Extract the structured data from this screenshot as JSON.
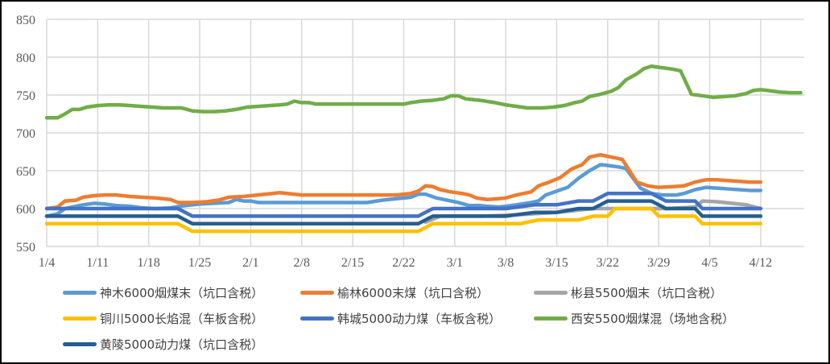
{
  "chart_data": {
    "type": "line",
    "title": "",
    "xlabel": "",
    "ylabel": "",
    "ylim": [
      550,
      850
    ],
    "yticks": [
      550,
      600,
      650,
      700,
      750,
      800,
      850
    ],
    "grid": true,
    "legend_position": "bottom",
    "x_tick_labels": [
      "1/4",
      "1/11",
      "1/18",
      "1/25",
      "2/1",
      "2/8",
      "2/15",
      "2/22",
      "3/1",
      "3/8",
      "3/15",
      "3/22",
      "3/29",
      "4/5",
      "4/12"
    ],
    "x_tick_days": [
      0,
      7,
      14,
      21,
      28,
      35,
      42,
      49,
      56,
      63,
      70,
      77,
      84,
      91,
      98
    ],
    "x_range_days": [
      0,
      103
    ],
    "series": [
      {
        "name": "神木6000烟煤末（坑口含税）",
        "color": "#5B9BD5",
        "points": [
          [
            0,
            590
          ],
          [
            3,
            593
          ],
          [
            5,
            600
          ],
          [
            8,
            603
          ],
          [
            10,
            605
          ],
          [
            13,
            607
          ],
          [
            16,
            606
          ],
          [
            19,
            604
          ],
          [
            23,
            603
          ],
          [
            26,
            601
          ],
          [
            30,
            600
          ],
          [
            34,
            601
          ],
          [
            38,
            604
          ],
          [
            42,
            606
          ],
          [
            46,
            607
          ],
          [
            50,
            608
          ],
          [
            52,
            612
          ],
          [
            54,
            610
          ],
          [
            56,
            610
          ],
          [
            58,
            608
          ],
          [
            66,
            608
          ],
          [
            74,
            608
          ],
          [
            82,
            608
          ],
          [
            88,
            608
          ],
          [
            92,
            611
          ],
          [
            96,
            613
          ],
          [
            100,
            615
          ],
          [
            102,
            619
          ],
          [
            104,
            619
          ],
          [
            107,
            614
          ],
          [
            110,
            611
          ],
          [
            113,
            608
          ],
          [
            116,
            604
          ],
          [
            119,
            604
          ],
          [
            121,
            603
          ],
          [
            124,
            602
          ],
          [
            126,
            603
          ],
          [
            129,
            605
          ],
          [
            133,
            608
          ],
          [
            135,
            610
          ],
          [
            137,
            618
          ],
          [
            140,
            623
          ],
          [
            143,
            628
          ],
          [
            146,
            640
          ],
          [
            149,
            650
          ],
          [
            152,
            658
          ],
          [
            154,
            657
          ],
          [
            157,
            655
          ],
          [
            159,
            653
          ],
          [
            163,
            627
          ],
          [
            166,
            620
          ],
          [
            169,
            618
          ],
          [
            173,
            618
          ],
          [
            175,
            620
          ],
          [
            178,
            625
          ],
          [
            181,
            628
          ],
          [
            184,
            627
          ],
          [
            187,
            626
          ],
          [
            190,
            625
          ],
          [
            193,
            624
          ],
          [
            196,
            624
          ]
        ]
      },
      {
        "name": "榆林6000末煤（坑口含税）",
        "color": "#ED7D31",
        "points": [
          [
            0,
            600
          ],
          [
            3,
            602
          ],
          [
            5,
            610
          ],
          [
            8,
            611
          ],
          [
            10,
            615
          ],
          [
            13,
            617
          ],
          [
            16,
            618
          ],
          [
            19,
            618
          ],
          [
            23,
            616
          ],
          [
            26,
            615
          ],
          [
            30,
            614
          ],
          [
            34,
            612
          ],
          [
            36,
            608
          ],
          [
            40,
            608
          ],
          [
            44,
            609
          ],
          [
            47,
            611
          ],
          [
            50,
            615
          ],
          [
            54,
            616
          ],
          [
            58,
            618
          ],
          [
            62,
            620
          ],
          [
            64,
            621
          ],
          [
            66,
            620
          ],
          [
            70,
            618
          ],
          [
            82,
            618
          ],
          [
            90,
            618
          ],
          [
            96,
            618
          ],
          [
            100,
            620
          ],
          [
            102,
            623
          ],
          [
            104,
            630
          ],
          [
            106,
            629
          ],
          [
            108,
            625
          ],
          [
            111,
            622
          ],
          [
            114,
            620
          ],
          [
            116,
            618
          ],
          [
            118,
            614
          ],
          [
            121,
            612
          ],
          [
            124,
            613
          ],
          [
            126,
            614
          ],
          [
            129,
            618
          ],
          [
            133,
            622
          ],
          [
            135,
            630
          ],
          [
            138,
            635
          ],
          [
            141,
            641
          ],
          [
            144,
            652
          ],
          [
            147,
            658
          ],
          [
            149,
            668
          ],
          [
            152,
            671
          ],
          [
            155,
            668
          ],
          [
            158,
            665
          ],
          [
            162,
            635
          ],
          [
            165,
            630
          ],
          [
            168,
            628
          ],
          [
            172,
            629
          ],
          [
            175,
            630
          ],
          [
            178,
            635
          ],
          [
            181,
            638
          ],
          [
            184,
            638
          ],
          [
            187,
            637
          ],
          [
            190,
            636
          ],
          [
            193,
            635
          ],
          [
            196,
            635
          ]
        ]
      },
      {
        "name": "彬县5500烟末（坑口含税）",
        "color": "#A5A5A5",
        "points": [
          [
            104,
            582
          ],
          [
            108,
            590
          ],
          [
            112,
            590
          ],
          [
            120,
            590
          ],
          [
            130,
            592
          ],
          [
            140,
            595
          ],
          [
            150,
            600
          ],
          [
            160,
            600
          ],
          [
            170,
            600
          ],
          [
            178,
            602
          ],
          [
            180,
            610
          ],
          [
            184,
            609
          ],
          [
            188,
            607
          ],
          [
            192,
            605
          ],
          [
            196,
            600
          ]
        ]
      },
      {
        "name": "铜川5000长焰混（车板含税）",
        "color": "#FFC000",
        "points": [
          [
            0,
            580
          ],
          [
            14,
            580
          ],
          [
            20,
            580
          ],
          [
            28,
            580
          ],
          [
            36,
            580
          ],
          [
            40,
            570
          ],
          [
            50,
            570
          ],
          [
            60,
            570
          ],
          [
            70,
            570
          ],
          [
            80,
            570
          ],
          [
            90,
            570
          ],
          [
            100,
            570
          ],
          [
            102,
            570
          ],
          [
            106,
            580
          ],
          [
            110,
            580
          ],
          [
            120,
            580
          ],
          [
            130,
            580
          ],
          [
            135,
            585
          ],
          [
            140,
            585
          ],
          [
            146,
            585
          ],
          [
            150,
            590
          ],
          [
            154,
            590
          ],
          [
            156,
            600
          ],
          [
            166,
            600
          ],
          [
            168,
            590
          ],
          [
            175,
            590
          ],
          [
            178,
            590
          ],
          [
            180,
            580
          ],
          [
            196,
            580
          ]
        ]
      },
      {
        "name": "韩城5000动力煤（车板含税）",
        "color": "#4472C4",
        "points": [
          [
            0,
            600
          ],
          [
            14,
            600
          ],
          [
            28,
            600
          ],
          [
            36,
            600
          ],
          [
            40,
            590
          ],
          [
            50,
            590
          ],
          [
            60,
            590
          ],
          [
            70,
            590
          ],
          [
            80,
            590
          ],
          [
            90,
            590
          ],
          [
            100,
            590
          ],
          [
            102,
            590
          ],
          [
            106,
            600
          ],
          [
            116,
            600
          ],
          [
            126,
            600
          ],
          [
            134,
            605
          ],
          [
            140,
            605
          ],
          [
            146,
            610
          ],
          [
            150,
            610
          ],
          [
            154,
            620
          ],
          [
            162,
            620
          ],
          [
            166,
            620
          ],
          [
            170,
            610
          ],
          [
            176,
            610
          ],
          [
            178,
            610
          ],
          [
            180,
            600
          ],
          [
            196,
            600
          ]
        ]
      },
      {
        "name": "西安5500烟煤混（场地含税）",
        "color": "#70AD47",
        "points": [
          [
            0,
            720
          ],
          [
            3,
            720
          ],
          [
            5,
            725
          ],
          [
            7,
            731
          ],
          [
            9,
            731
          ],
          [
            11,
            734
          ],
          [
            14,
            736
          ],
          [
            17,
            737
          ],
          [
            20,
            737
          ],
          [
            23,
            736
          ],
          [
            26,
            735
          ],
          [
            29,
            734
          ],
          [
            32,
            733
          ],
          [
            35,
            733
          ],
          [
            37,
            733
          ],
          [
            40,
            729
          ],
          [
            43,
            728
          ],
          [
            46,
            728
          ],
          [
            49,
            729
          ],
          [
            52,
            731
          ],
          [
            55,
            734
          ],
          [
            58,
            735
          ],
          [
            61,
            736
          ],
          [
            64,
            737
          ],
          [
            66,
            738
          ],
          [
            68,
            742
          ],
          [
            70,
            740
          ],
          [
            72,
            740
          ],
          [
            74,
            738
          ],
          [
            82,
            738
          ],
          [
            90,
            738
          ],
          [
            98,
            738
          ],
          [
            100,
            740
          ],
          [
            103,
            742
          ],
          [
            106,
            743
          ],
          [
            109,
            745
          ],
          [
            111,
            749
          ],
          [
            113,
            749
          ],
          [
            115,
            745
          ],
          [
            119,
            743
          ],
          [
            123,
            740
          ],
          [
            126,
            737
          ],
          [
            129,
            735
          ],
          [
            132,
            733
          ],
          [
            136,
            733
          ],
          [
            139,
            734
          ],
          [
            142,
            736
          ],
          [
            145,
            740
          ],
          [
            147,
            742
          ],
          [
            149,
            748
          ],
          [
            152,
            751
          ],
          [
            155,
            755
          ],
          [
            157,
            760
          ],
          [
            159,
            770
          ],
          [
            162,
            778
          ],
          [
            164,
            785
          ],
          [
            166,
            788
          ],
          [
            169,
            786
          ],
          [
            172,
            784
          ],
          [
            174,
            782
          ],
          [
            177,
            751
          ],
          [
            180,
            749
          ],
          [
            183,
            747
          ],
          [
            186,
            748
          ],
          [
            189,
            749
          ],
          [
            192,
            752
          ],
          [
            194,
            756
          ],
          [
            196,
            757
          ],
          [
            198,
            756
          ],
          [
            201,
            754
          ],
          [
            204,
            753
          ],
          [
            207,
            753
          ]
        ]
      },
      {
        "name": "黄陵5000动力煤（坑口含税）",
        "color": "#255E91",
        "points": [
          [
            0,
            590
          ],
          [
            14,
            590
          ],
          [
            28,
            590
          ],
          [
            36,
            590
          ],
          [
            40,
            580
          ],
          [
            50,
            580
          ],
          [
            60,
            580
          ],
          [
            70,
            580
          ],
          [
            80,
            580
          ],
          [
            90,
            580
          ],
          [
            100,
            580
          ],
          [
            102,
            580
          ],
          [
            106,
            590
          ],
          [
            116,
            590
          ],
          [
            126,
            590
          ],
          [
            134,
            595
          ],
          [
            140,
            595
          ],
          [
            146,
            600
          ],
          [
            150,
            600
          ],
          [
            154,
            610
          ],
          [
            162,
            610
          ],
          [
            166,
            610
          ],
          [
            170,
            600
          ],
          [
            176,
            600
          ],
          [
            178,
            600
          ],
          [
            180,
            590
          ],
          [
            196,
            590
          ]
        ]
      }
    ]
  },
  "legend": {
    "items": [
      {
        "label": "神木6000烟煤末（坑口含税）",
        "color": "#5B9BD5"
      },
      {
        "label": "榆林6000末煤（坑口含税）",
        "color": "#ED7D31"
      },
      {
        "label": "彬县5500烟末（坑口含税）",
        "color": "#A5A5A5"
      },
      {
        "label": "铜川5000长焰混（车板含税）",
        "color": "#FFC000"
      },
      {
        "label": "韩城5000动力煤（车板含税）",
        "color": "#4472C4"
      },
      {
        "label": "西安5500烟煤混（场地含税）",
        "color": "#70AD47"
      },
      {
        "label": "黄陵5000动力煤（坑口含税）",
        "color": "#255E91"
      }
    ]
  }
}
